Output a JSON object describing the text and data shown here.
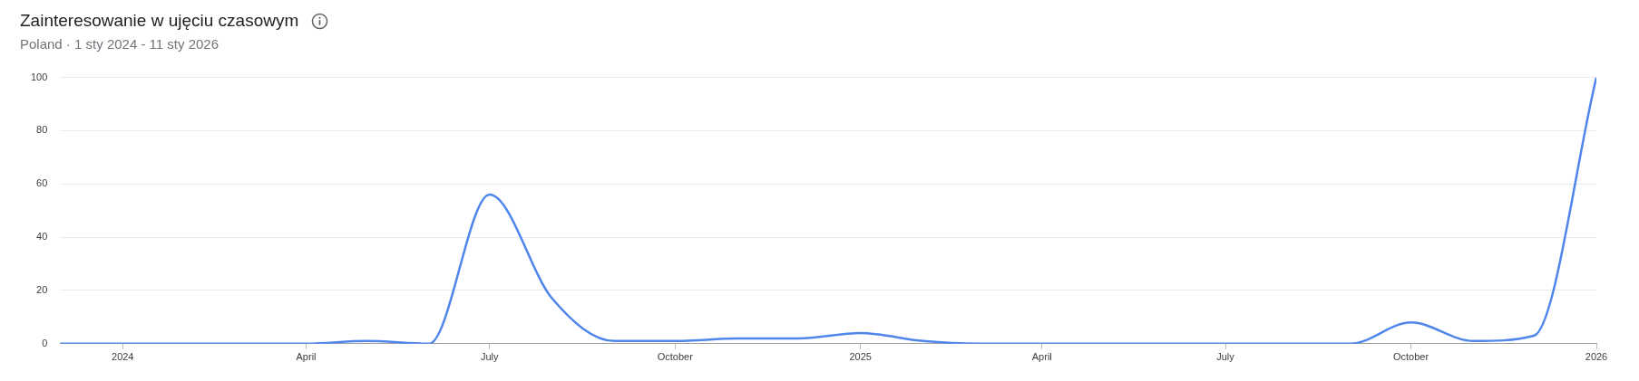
{
  "chart_data": {
    "type": "line",
    "title": "Zainteresowanie w ujęciu czasowym",
    "subtitle": "Poland · 1 sty 2024 - 11 sty 2026",
    "x": [
      "2023-12-01",
      "2024-01-01",
      "2024-02-01",
      "2024-03-01",
      "2024-04-01",
      "2024-05-01",
      "2024-06-01",
      "2024-07-01",
      "2024-08-01",
      "2024-09-01",
      "2024-10-01",
      "2024-11-01",
      "2024-12-01",
      "2025-01-01",
      "2025-02-01",
      "2025-03-01",
      "2025-04-01",
      "2025-05-01",
      "2025-06-01",
      "2025-07-01",
      "2025-08-01",
      "2025-09-01",
      "2025-10-01",
      "2025-11-01",
      "2025-12-01",
      "2026-01-01"
    ],
    "series": [
      {
        "color": "#4f86ec",
        "values": [
          0,
          0,
          0,
          0,
          0,
          1,
          0,
          56,
          17,
          1,
          1,
          2,
          2,
          4,
          1,
          0,
          0,
          0,
          0,
          0,
          0,
          0,
          8,
          1,
          3,
          100
        ]
      }
    ],
    "xlim": [
      "2023-12-01",
      "2026-01-01"
    ],
    "xticks": [
      {
        "value": "2024-01-01",
        "label": "2024"
      },
      {
        "value": "2024-04-01",
        "label": "April"
      },
      {
        "value": "2024-07-01",
        "label": "July"
      },
      {
        "value": "2024-10-01",
        "label": "October"
      },
      {
        "value": "2025-01-01",
        "label": "2025"
      },
      {
        "value": "2025-04-01",
        "label": "April"
      },
      {
        "value": "2025-07-01",
        "label": "July"
      },
      {
        "value": "2025-10-01",
        "label": "October"
      },
      {
        "value": "2026-01-01",
        "label": "2026"
      }
    ],
    "ylim": [
      0,
      100
    ],
    "yticks": [
      0,
      20,
      40,
      60,
      80,
      100
    ],
    "grid": "y",
    "legend": false,
    "marker": "none",
    "line_style": "solid"
  }
}
